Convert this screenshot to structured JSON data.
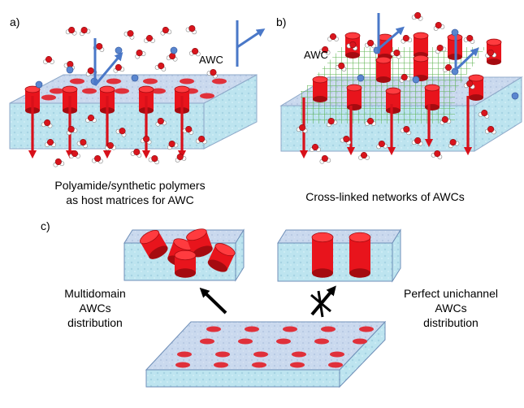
{
  "panels": {
    "a": {
      "letter": "a)",
      "label": "AWC",
      "caption_line1": "Polyamide/synthetic polymers",
      "caption_line2": "as host matrices for AWC"
    },
    "b": {
      "letter": "b)",
      "label": "AWC",
      "caption": "Cross-linked networks of AWCs"
    },
    "c": {
      "letter": "c)",
      "left_line1": "Multidomain",
      "left_line2": "AWCs",
      "left_line3": "distribution",
      "right_line1": "Perfect unichannel",
      "right_line2": "AWCs",
      "right_line3": "distribution"
    }
  },
  "colors": {
    "membrane_top": "#c9d9ee",
    "membrane_side": "#b9e3ef",
    "channel_red": "#e8141c",
    "channel_dark": "#a50b10",
    "flow_arrow": "#d8101a",
    "ion_blue": "#5a86cf",
    "grid_green": "#4caa3c",
    "water_oxygen": "#d8141c"
  }
}
